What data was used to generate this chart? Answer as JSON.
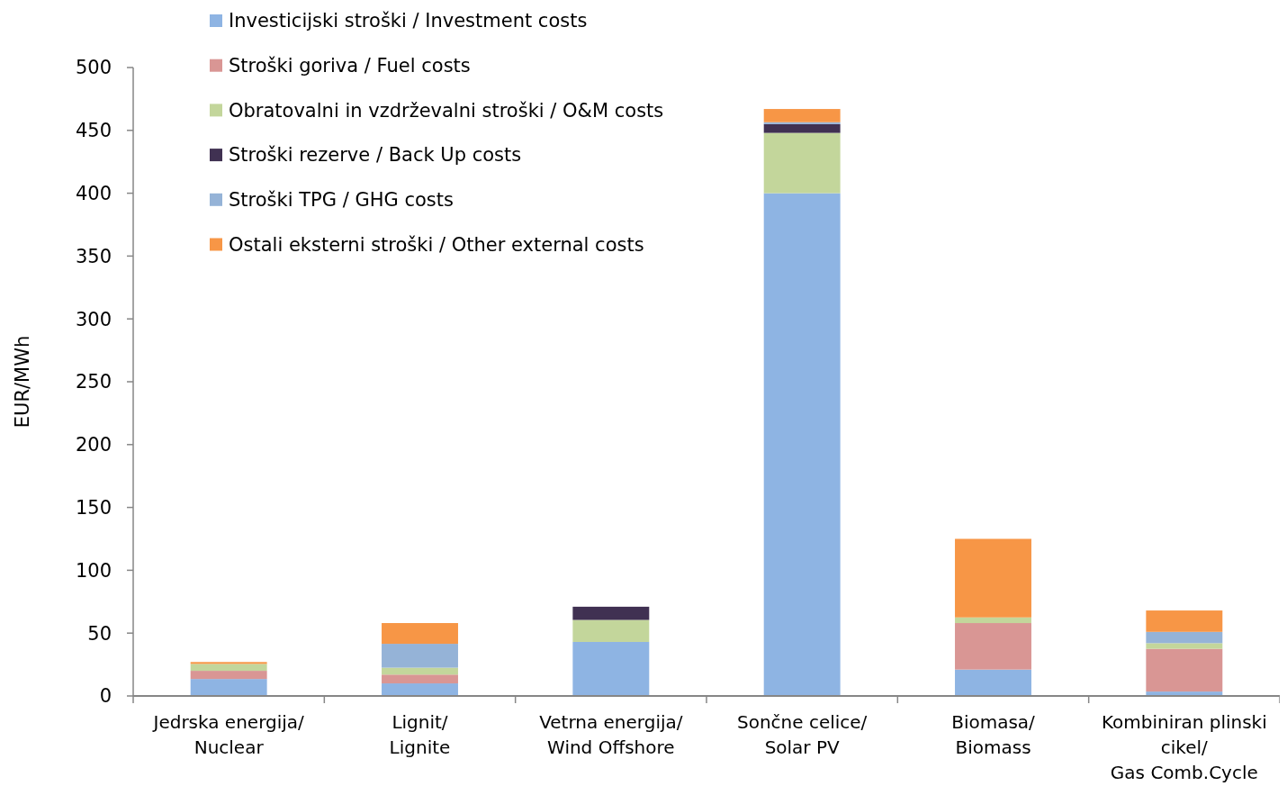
{
  "chart_data": {
    "type": "bar",
    "stacked": true,
    "ylabel": "EUR/MWh",
    "categories": [
      "Jedrska energija/\nNuclear",
      "Lignit/\nLignite",
      "Vetrna energija/\nWind Offshore",
      "Sončne celice/\nSolar PV",
      "Biomasa/\nBiomass",
      "Kombiniran plinski\ncikel/\nGas Comb.Cycle"
    ],
    "series": [
      {
        "name": "Investicijski stroški / Investment costs",
        "color": "#8eb4e3",
        "values": [
          13.5,
          10,
          43,
          400,
          21,
          3.5
        ]
      },
      {
        "name": "Stroški goriva / Fuel costs",
        "color": "#d99694",
        "values": [
          6.5,
          7,
          0,
          0,
          37,
          34
        ]
      },
      {
        "name": "Obratovalni in vzdrževalni stroški / O&M costs",
        "color": "#c3d69b",
        "values": [
          5.5,
          5.5,
          17.5,
          48,
          4.5,
          4.5
        ]
      },
      {
        "name": "Stroški rezerve / Back Up costs",
        "color": "#403152",
        "values": [
          0,
          0,
          10.5,
          7,
          0,
          0
        ]
      },
      {
        "name": "Stroški TPG / GHG costs",
        "color": "#95b3d7",
        "values": [
          0,
          19,
          0,
          1.5,
          0,
          9
        ]
      },
      {
        "name": "Ostali eksterni stroški / Other external costs",
        "color": "#f79646",
        "values": [
          1.5,
          16.5,
          0,
          10.5,
          62.5,
          17
        ]
      }
    ],
    "ylim": [
      0,
      500
    ],
    "yticks": [
      0,
      50,
      100,
      150,
      200,
      250,
      300,
      350,
      400,
      450,
      500
    ],
    "legend": "top left"
  }
}
